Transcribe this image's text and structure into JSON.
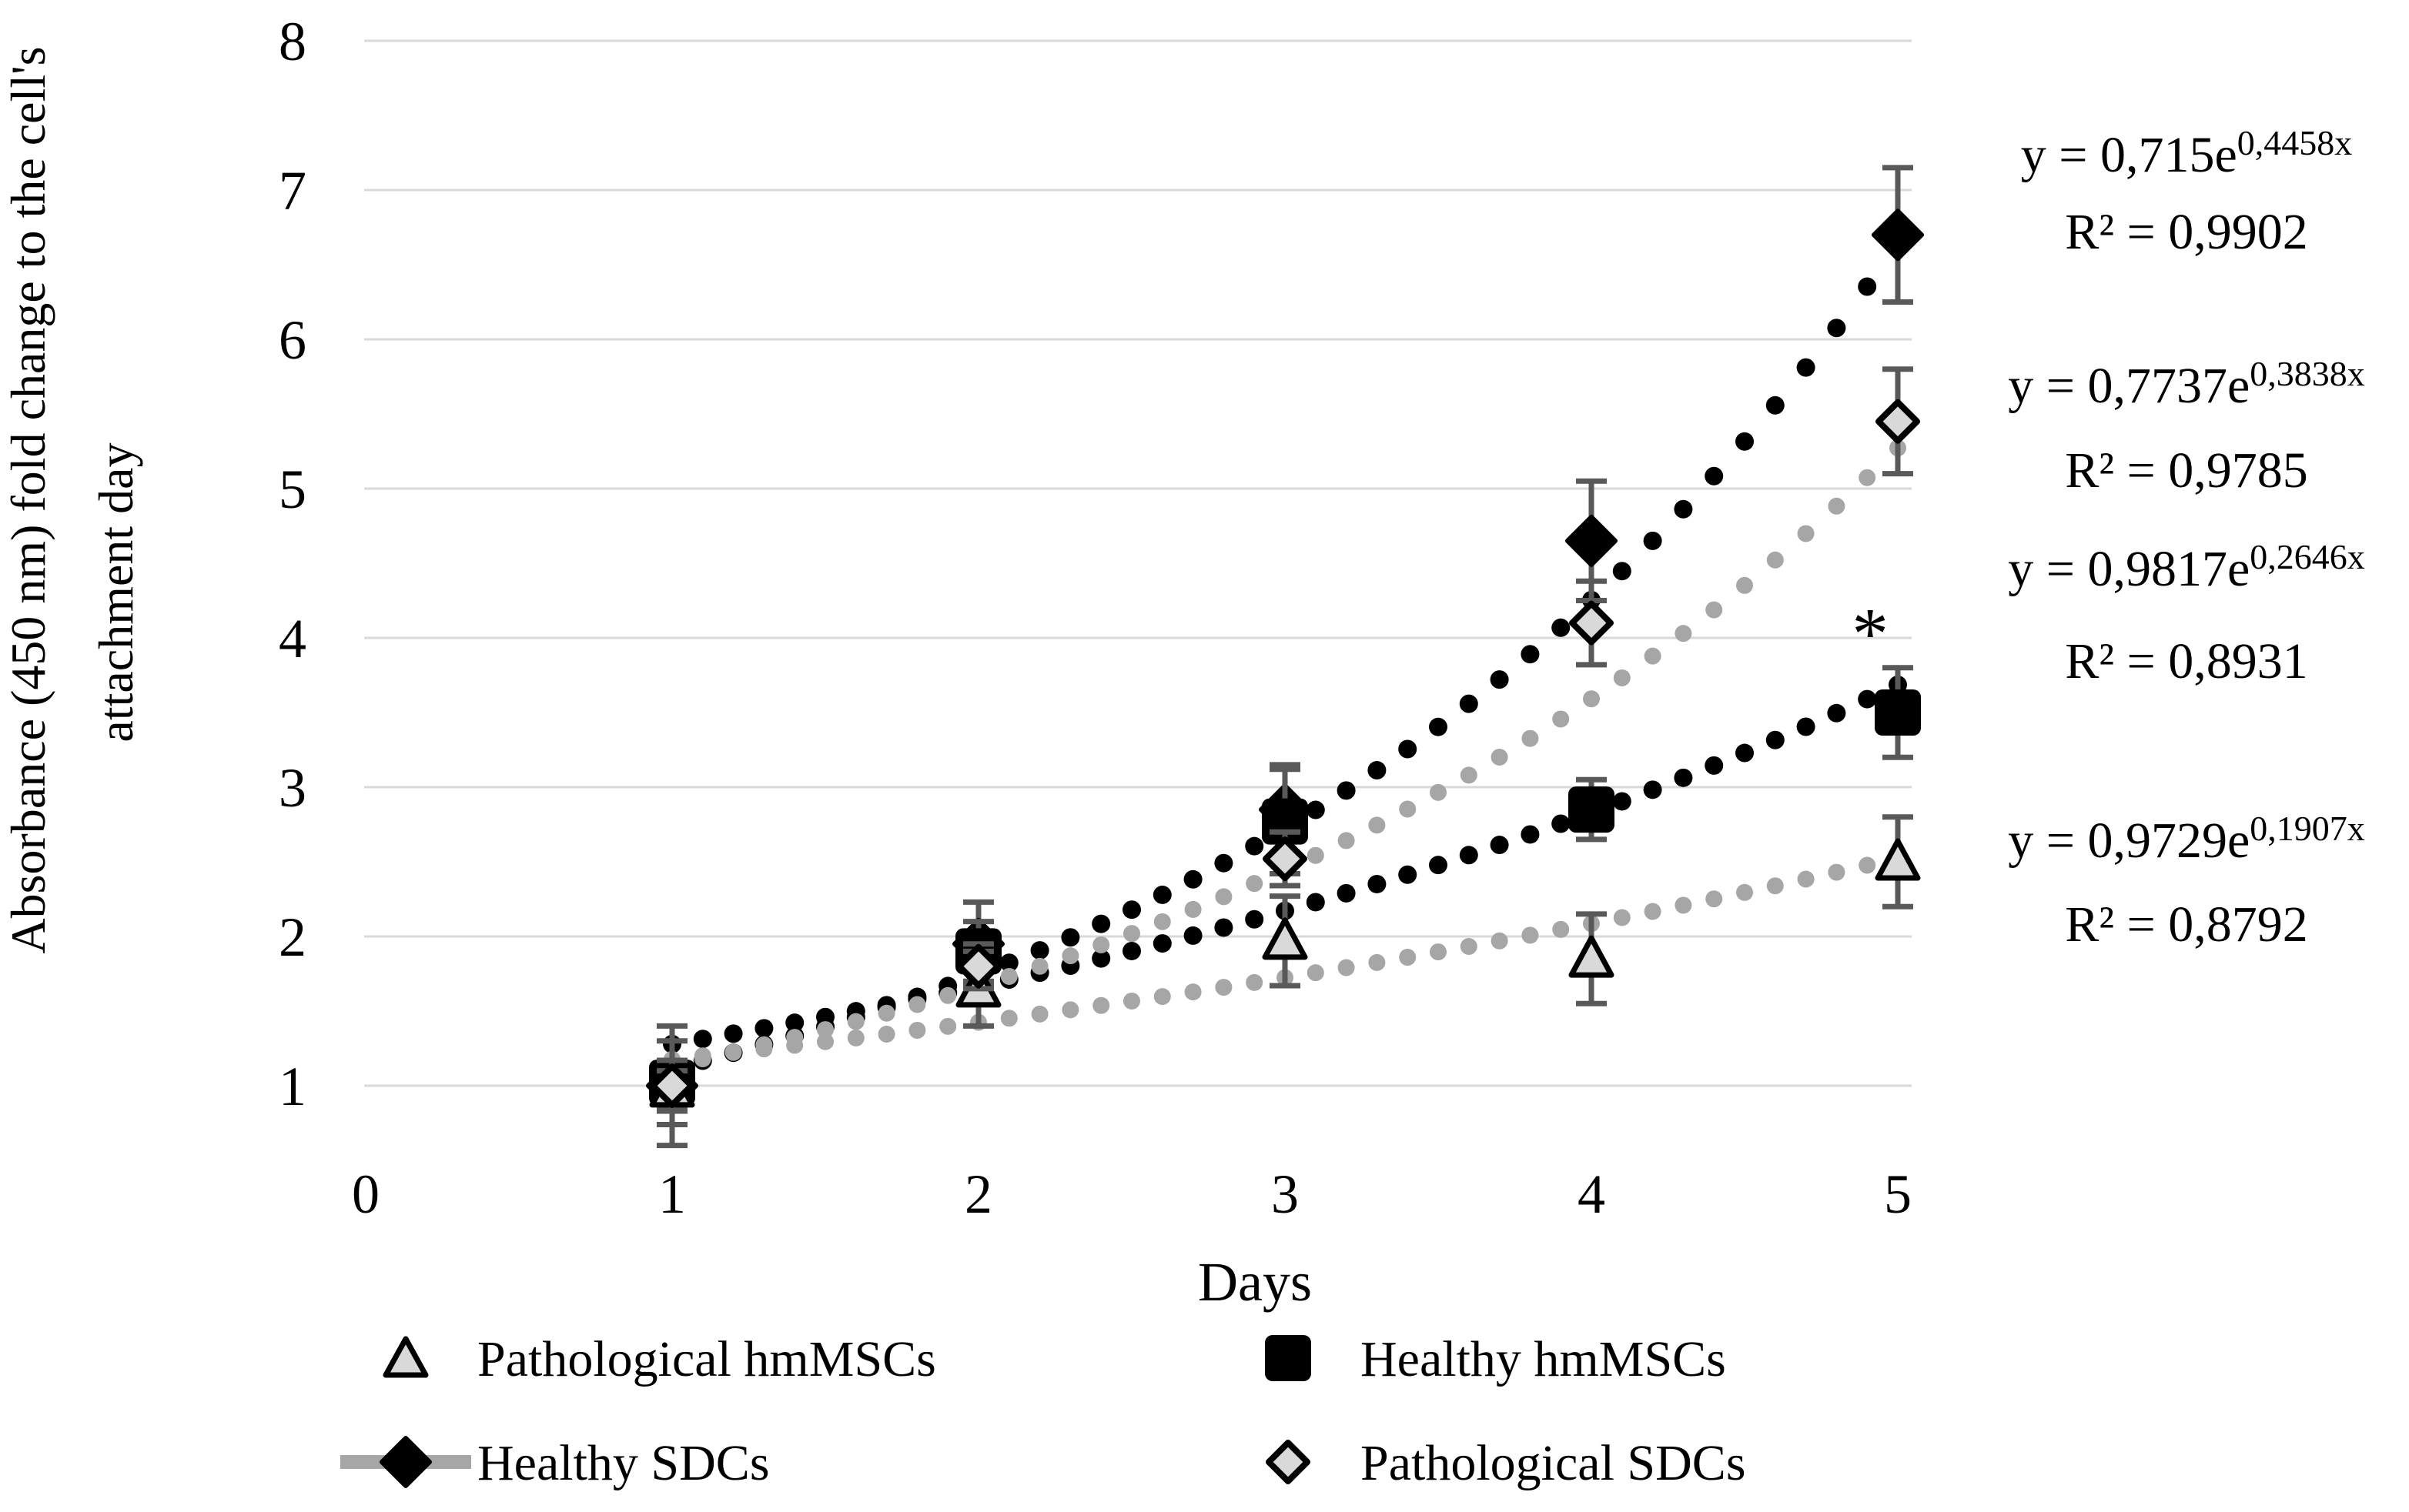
{
  "chart_data": {
    "type": "scatter",
    "title": "",
    "xlabel": "Days",
    "ylabel": "Absorbance (450 nm) fold change to the cell's attachment day",
    "ylabel_lines": [
      "Absorbance (450 nm) fold change to the cell's",
      "attachment day"
    ],
    "x": [
      1,
      2,
      3,
      4,
      5
    ],
    "x_ticks": [
      "0",
      "1",
      "2",
      "3",
      "4",
      "5"
    ],
    "y_ticks": [
      "1",
      "2",
      "3",
      "4",
      "5",
      "6",
      "7",
      "8"
    ],
    "xlim": [
      0,
      5.05
    ],
    "ylim": [
      0.6,
      8.1
    ],
    "grid": "horizontal-only",
    "legend_position": "bottom",
    "colors": {
      "black_series": "#000000",
      "gray_series": "#a6a6a6",
      "light_marker_fill": "#d9d9d9",
      "error_bar": "#595959",
      "gridline": "#d9d9d9"
    },
    "series": [
      {
        "name": "Pathological hmMSCs",
        "marker": "triangle",
        "marker_fill": "#d9d9d9",
        "marker_stroke": "#000000",
        "values": [
          0.98,
          1.65,
          1.97,
          1.85,
          2.5
        ],
        "errors": [
          0.12,
          0.25,
          0.3,
          0.3,
          0.3
        ],
        "trend": {
          "a": 0.9729,
          "b": 0.1907,
          "color": "#a6a6a6",
          "style": "dotted"
        },
        "equation": {
          "prefix": "y = 0,9729e",
          "exp": "0,1907x",
          "r2": "R² = 0,8792"
        }
      },
      {
        "name": "Healthy hmMSCs",
        "marker": "square",
        "marker_fill": "#000000",
        "marker_stroke": "#000000",
        "values": [
          1.02,
          1.9,
          2.77,
          2.85,
          3.5
        ],
        "errors": [
          0.28,
          0.2,
          0.35,
          0.2,
          0.3
        ],
        "trend": {
          "a": 0.9817,
          "b": 0.2646,
          "color": "#000000",
          "style": "dotted"
        },
        "equation": {
          "prefix": "y = 0,9817e",
          "exp": "0,2646x",
          "r2": "R² = 0,8931"
        }
      },
      {
        "name": "Healthy SDCs",
        "marker": "diamond",
        "marker_fill": "#000000",
        "marker_stroke": "#000000",
        "values": [
          1.0,
          1.95,
          2.85,
          4.65,
          6.7
        ],
        "errors": [
          0.4,
          0.28,
          0.3,
          0.4,
          0.45
        ],
        "trend": {
          "a": 0.715,
          "b": 0.4458,
          "color": "#000000",
          "style": "dotted"
        },
        "equation": {
          "prefix": "y = 0,715e",
          "exp": "0,4458x",
          "r2": "R² = 0,9902"
        }
      },
      {
        "name": "Pathological SDCs",
        "marker": "diamond-open",
        "marker_fill": "#d9d9d9",
        "marker_stroke": "#000000",
        "values": [
          1.0,
          1.8,
          2.52,
          4.1,
          5.45
        ],
        "errors": [
          0.17,
          0.15,
          0.18,
          0.28,
          0.35
        ],
        "trend": {
          "a": 0.7737,
          "b": 0.3838,
          "color": "#a6a6a6",
          "style": "dotted"
        },
        "equation": {
          "prefix": "y = 0,7737e",
          "exp": "0,3838x",
          "r2": "R² = 0,9785"
        }
      }
    ],
    "annotation": {
      "text": "*",
      "day": 4.91,
      "value": 4.12
    }
  },
  "legend": {
    "rows": [
      [
        {
          "series": 0
        },
        {
          "series": 1
        }
      ],
      [
        {
          "series": 2
        },
        {
          "series": 3
        }
      ]
    ]
  }
}
